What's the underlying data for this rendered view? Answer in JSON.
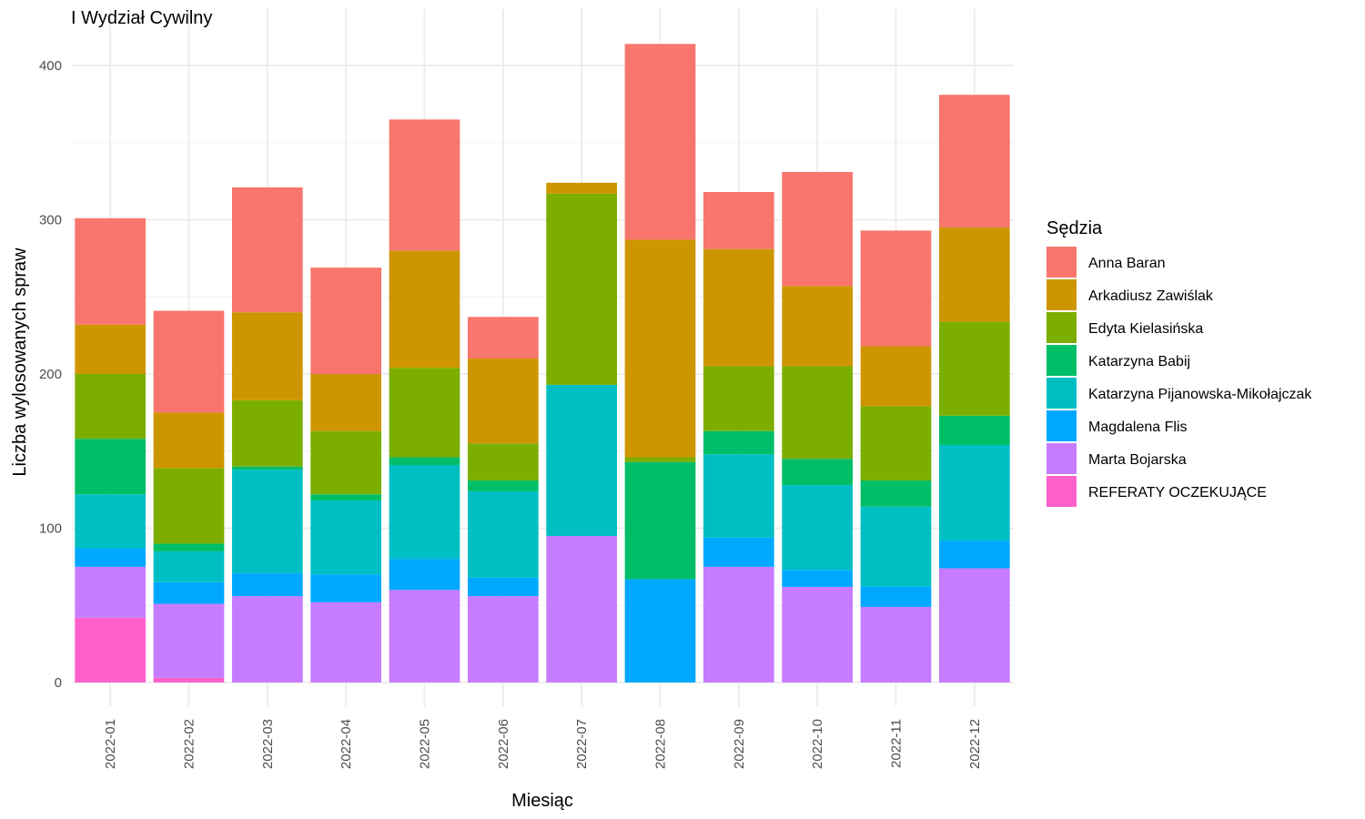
{
  "chart_data": {
    "type": "bar",
    "stacked": true,
    "title": "I Wydział Cywilny",
    "xlabel": "Miesiąc",
    "ylabel": "Liczba wylosowanych spraw",
    "ylim": [
      -15,
      432
    ],
    "yticks": [
      0,
      100,
      200,
      300,
      400
    ],
    "grid": true,
    "legend_title": "Sędzia",
    "legend_position": "right",
    "categories": [
      "2022-01",
      "2022-02",
      "2022-03",
      "2022-04",
      "2022-05",
      "2022-06",
      "2022-07",
      "2022-08",
      "2022-09",
      "2022-10",
      "2022-11",
      "2022-12"
    ],
    "series": [
      {
        "name": "Anna Baran",
        "color": "#F8766D",
        "values": [
          69,
          66,
          81,
          69,
          85,
          27,
          0,
          127,
          37,
          74,
          75,
          86
        ]
      },
      {
        "name": "Arkadiusz Zawiślak",
        "color": "#CD9600",
        "values": [
          32,
          36,
          57,
          37,
          76,
          55,
          7,
          141,
          76,
          52,
          39,
          61
        ]
      },
      {
        "name": "Edyta Kielasińska",
        "color": "#7CAE00",
        "values": [
          42,
          49,
          43,
          41,
          58,
          24,
          124,
          3,
          42,
          60,
          48,
          61
        ]
      },
      {
        "name": "Katarzyna Babij",
        "color": "#00BE67",
        "values": [
          36,
          5,
          2,
          4,
          5,
          7,
          0,
          76,
          15,
          17,
          17,
          19
        ]
      },
      {
        "name": "Katarzyna Pijanowska-Mikołajczak",
        "color": "#00BFC4",
        "values": [
          35,
          20,
          67,
          48,
          61,
          56,
          98,
          0,
          54,
          55,
          52,
          62
        ]
      },
      {
        "name": "Magdalena Flis",
        "color": "#00A9FF",
        "values": [
          12,
          14,
          15,
          18,
          20,
          12,
          0,
          67,
          19,
          11,
          13,
          18
        ]
      },
      {
        "name": "Marta Bojarska",
        "color": "#C77CFF",
        "values": [
          33,
          48,
          56,
          52,
          60,
          56,
          95,
          0,
          75,
          62,
          49,
          74
        ]
      },
      {
        "name": "REFERATY OCZEKUJĄCE",
        "color": "#FF61CC",
        "values": [
          42,
          3,
          0,
          0,
          0,
          0,
          0,
          0,
          0,
          0,
          0,
          0
        ]
      }
    ]
  }
}
